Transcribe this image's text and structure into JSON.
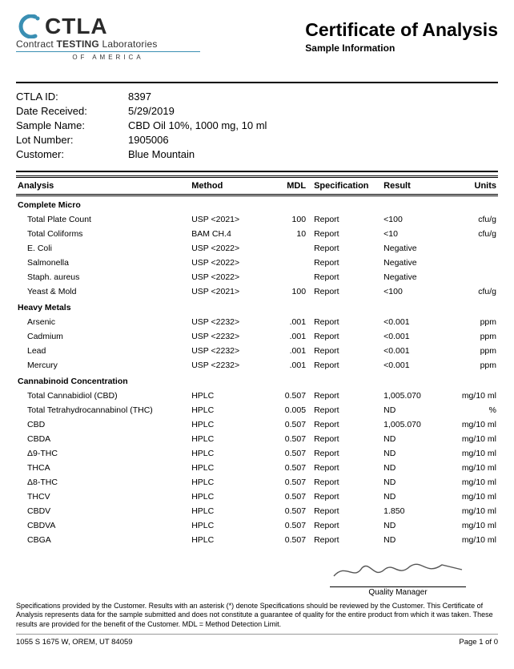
{
  "logo": {
    "big": "CTLA",
    "line1_a": "Contract ",
    "line1_b": "TESTING",
    "line1_c": " Laboratories",
    "line2": "OF AMERICA",
    "accent_color": "#3a8fb3",
    "text_color": "#2a2a2a"
  },
  "header": {
    "title": "Certificate of Analysis",
    "subtitle": "Sample Information"
  },
  "info": [
    {
      "label": "CTLA ID:",
      "value": "8397"
    },
    {
      "label": "Date Received:",
      "value": "5/29/2019"
    },
    {
      "label": "Sample Name:",
      "value": "CBD Oil 10%, 1000 mg, 10 ml"
    },
    {
      "label": "Lot Number:",
      "value": "1905006"
    },
    {
      "label": "Customer:",
      "value": "Blue Mountain"
    }
  ],
  "columns": {
    "analysis": "Analysis",
    "method": "Method",
    "mdl": "MDL",
    "spec": "Specification",
    "result": "Result",
    "units": "Units"
  },
  "sections": [
    {
      "title": "Complete Micro",
      "rows": [
        {
          "a": "Total Plate Count",
          "m": "USP <2021>",
          "mdl": "100",
          "s": "Report",
          "r": "<100",
          "u": "cfu/g"
        },
        {
          "a": "Total Coliforms",
          "m": "BAM CH.4",
          "mdl": "10",
          "s": "Report",
          "r": "<10",
          "u": "cfu/g"
        },
        {
          "a": "E. Coli",
          "m": "USP <2022>",
          "mdl": "",
          "s": "Report",
          "r": "Negative",
          "u": ""
        },
        {
          "a": "Salmonella",
          "m": "USP <2022>",
          "mdl": "",
          "s": "Report",
          "r": "Negative",
          "u": ""
        },
        {
          "a": "Staph. aureus",
          "m": "USP <2022>",
          "mdl": "",
          "s": "Report",
          "r": "Negative",
          "u": ""
        },
        {
          "a": "Yeast & Mold",
          "m": "USP <2021>",
          "mdl": "100",
          "s": "Report",
          "r": "<100",
          "u": "cfu/g"
        }
      ]
    },
    {
      "title": "Heavy Metals",
      "rows": [
        {
          "a": "Arsenic",
          "m": "USP <2232>",
          "mdl": ".001",
          "s": "Report",
          "r": "<0.001",
          "u": "ppm"
        },
        {
          "a": "Cadmium",
          "m": "USP <2232>",
          "mdl": ".001",
          "s": "Report",
          "r": "<0.001",
          "u": "ppm"
        },
        {
          "a": "Lead",
          "m": "USP <2232>",
          "mdl": ".001",
          "s": "Report",
          "r": "<0.001",
          "u": "ppm"
        },
        {
          "a": "Mercury",
          "m": "USP <2232>",
          "mdl": ".001",
          "s": "Report",
          "r": "<0.001",
          "u": "ppm"
        }
      ]
    },
    {
      "title": "Cannabinoid Concentration",
      "rows": [
        {
          "a": "Total Cannabidiol (CBD)",
          "m": "HPLC",
          "mdl": "0.507",
          "s": "Report",
          "r": "1,005.070",
          "u": "mg/10 ml"
        },
        {
          "a": "Total Tetrahydrocannabinol (THC)",
          "m": "HPLC",
          "mdl": "0.005",
          "s": "Report",
          "r": "ND",
          "u": "%"
        },
        {
          "a": "CBD",
          "m": "HPLC",
          "mdl": "0.507",
          "s": "Report",
          "r": "1,005.070",
          "u": "mg/10 ml"
        },
        {
          "a": "CBDA",
          "m": "HPLC",
          "mdl": "0.507",
          "s": "Report",
          "r": "ND",
          "u": "mg/10 ml"
        },
        {
          "a": "Δ9-THC",
          "m": "HPLC",
          "mdl": "0.507",
          "s": "Report",
          "r": "ND",
          "u": "mg/10 ml"
        },
        {
          "a": "THCA",
          "m": "HPLC",
          "mdl": "0.507",
          "s": "Report",
          "r": "ND",
          "u": "mg/10 ml"
        },
        {
          "a": "Δ8-THC",
          "m": "HPLC",
          "mdl": "0.507",
          "s": "Report",
          "r": "ND",
          "u": "mg/10 ml"
        },
        {
          "a": "THCV",
          "m": "HPLC",
          "mdl": "0.507",
          "s": "Report",
          "r": "ND",
          "u": "mg/10 ml"
        },
        {
          "a": "CBDV",
          "m": "HPLC",
          "mdl": "0.507",
          "s": "Report",
          "r": "1.850",
          "u": "mg/10 ml"
        },
        {
          "a": "CBDVA",
          "m": "HPLC",
          "mdl": "0.507",
          "s": "Report",
          "r": "ND",
          "u": "mg/10 ml"
        },
        {
          "a": "CBGA",
          "m": "HPLC",
          "mdl": "0.507",
          "s": "Report",
          "r": "ND",
          "u": "mg/10 ml"
        }
      ]
    }
  ],
  "signature": {
    "role": "Quality Manager"
  },
  "disclaimer": "Specifications provided by the Customer. Results with an asterisk (*) denote Specifications should be reviewed by the Customer. This Certificate of Analysis represents data for the sample submitted and does not constitute a guarantee of quality for the entire product from which it was taken. These results are provided for the benefit of the Customer.  MDL = Method Detection Limit.",
  "footer": {
    "address": "1055 S 1675 W, OREM, UT 84059",
    "page": "Page 1 of 0"
  }
}
